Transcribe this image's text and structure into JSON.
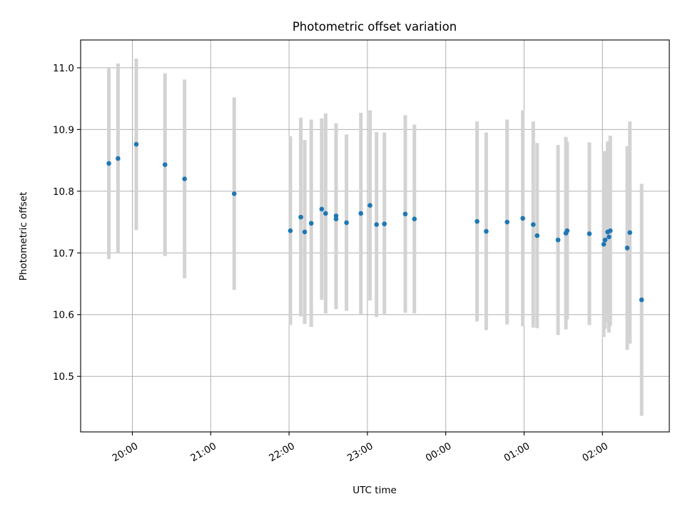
{
  "chart_data": {
    "type": "scatter",
    "title": "Photometric offset variation",
    "xlabel": "UTC time",
    "ylabel": "Photometric offset",
    "x_unit": "UTC hh:mm, consecutive days",
    "x_ticks": [
      "20:00",
      "21:00",
      "22:00",
      "23:00",
      "00:00",
      "01:00",
      "02:00"
    ],
    "y_ticks": [
      10.5,
      10.6,
      10.7,
      10.8,
      10.9,
      11.0
    ],
    "ylim": [
      10.41,
      11.045
    ],
    "grid": true,
    "marker_color": "#1f77b4",
    "errorbar_color": "#d3d3d3",
    "series": [
      {
        "points": [
          {
            "x": "19:42",
            "y": 10.845,
            "err": 0.155
          },
          {
            "x": "19:49",
            "y": 10.853,
            "err": 0.154
          },
          {
            "x": "20:03",
            "y": 10.876,
            "err": 0.139
          },
          {
            "x": "20:25",
            "y": 10.843,
            "err": 0.148
          },
          {
            "x": "20:40",
            "y": 10.82,
            "err": 0.161
          },
          {
            "x": "21:18",
            "y": 10.796,
            "err": 0.156
          },
          {
            "x": "22:01",
            "y": 10.736,
            "err": 0.153
          },
          {
            "x": "22:09",
            "y": 10.758,
            "err": 0.161
          },
          {
            "x": "22:12",
            "y": 10.734,
            "err": 0.149
          },
          {
            "x": "22:17",
            "y": 10.748,
            "err": 0.168
          },
          {
            "x": "22:25",
            "y": 10.771,
            "err": 0.147
          },
          {
            "x": "22:28",
            "y": 10.764,
            "err": 0.162
          },
          {
            "x": "22:36",
            "y": 10.76,
            "err": 0.15
          },
          {
            "x": "22:36",
            "y": 10.755,
            "err": 0.146
          },
          {
            "x": "22:44",
            "y": 10.749,
            "err": 0.143
          },
          {
            "x": "22:55",
            "y": 10.764,
            "err": 0.163
          },
          {
            "x": "23:02",
            "y": 10.777,
            "err": 0.154
          },
          {
            "x": "23:07",
            "y": 10.746,
            "err": 0.15
          },
          {
            "x": "23:13",
            "y": 10.747,
            "err": 0.148
          },
          {
            "x": "23:29",
            "y": 10.763,
            "err": 0.16
          },
          {
            "x": "23:36",
            "y": 10.755,
            "err": 0.153
          },
          {
            "x": "00:24",
            "y": 10.751,
            "err": 0.162
          },
          {
            "x": "00:31",
            "y": 10.735,
            "err": 0.16
          },
          {
            "x": "00:47",
            "y": 10.75,
            "err": 0.166
          },
          {
            "x": "00:59",
            "y": 10.756,
            "err": 0.175
          },
          {
            "x": "01:07",
            "y": 10.746,
            "err": 0.167
          },
          {
            "x": "01:10",
            "y": 10.728,
            "err": 0.15
          },
          {
            "x": "01:26",
            "y": 10.721,
            "err": 0.154
          },
          {
            "x": "01:32",
            "y": 10.732,
            "err": 0.156
          },
          {
            "x": "01:33",
            "y": 10.736,
            "err": 0.144
          },
          {
            "x": "01:50",
            "y": 10.731,
            "err": 0.148
          },
          {
            "x": "02:01",
            "y": 10.714,
            "err": 0.15
          },
          {
            "x": "02:02",
            "y": 10.721,
            "err": 0.144
          },
          {
            "x": "02:04",
            "y": 10.734,
            "err": 0.146
          },
          {
            "x": "02:05",
            "y": 10.726,
            "err": 0.155
          },
          {
            "x": "02:06",
            "y": 10.736,
            "err": 0.154
          },
          {
            "x": "02:19",
            "y": 10.708,
            "err": 0.165
          },
          {
            "x": "02:21",
            "y": 10.733,
            "err": 0.18
          },
          {
            "x": "02:30",
            "y": 10.624,
            "err": 0.188
          }
        ]
      }
    ]
  }
}
